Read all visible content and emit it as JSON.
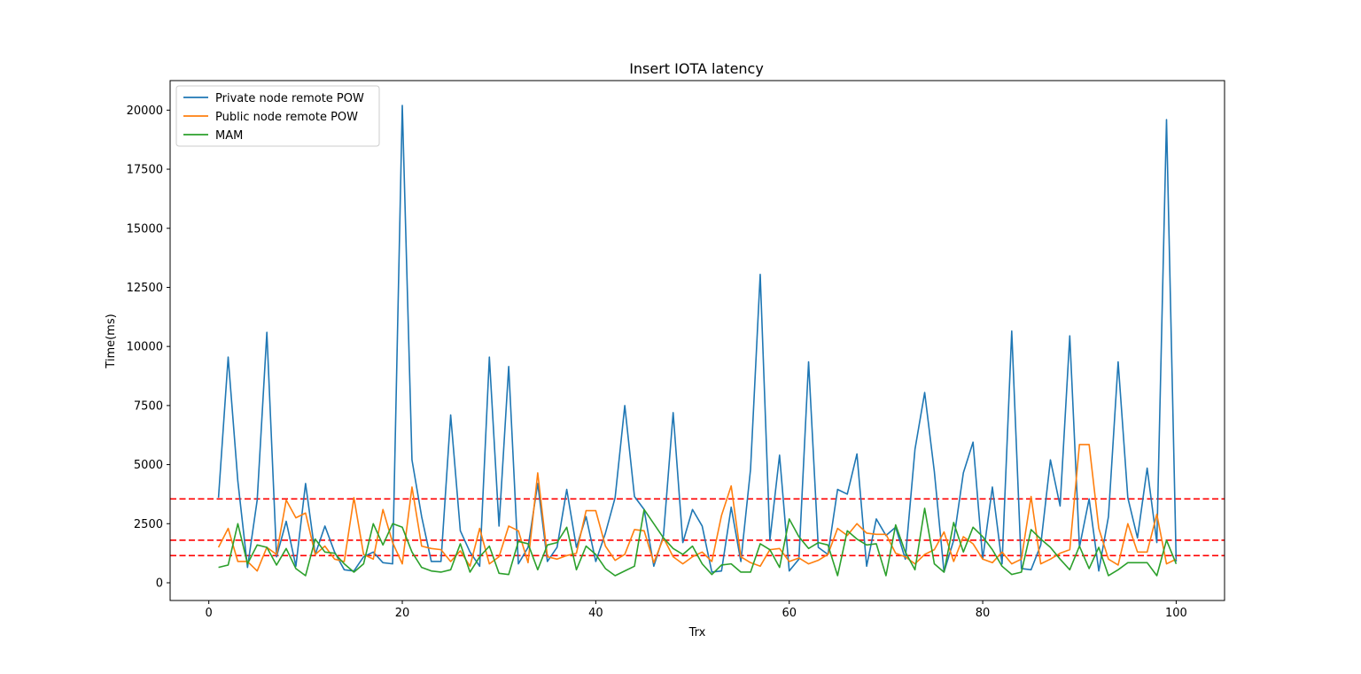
{
  "chart_data": {
    "type": "line",
    "title": "Insert IOTA latency",
    "xlabel": "Trx",
    "ylabel": "Time(ms)",
    "xlim": [
      -4,
      105
    ],
    "ylim": [
      -750,
      21250
    ],
    "xticks": [
      0,
      20,
      40,
      60,
      80,
      100
    ],
    "yticks": [
      0,
      2500,
      5000,
      7500,
      10000,
      12500,
      15000,
      17500,
      20000
    ],
    "grid": false,
    "legend_position": "top-left",
    "x": [
      1,
      2,
      3,
      4,
      5,
      6,
      7,
      8,
      9,
      10,
      11,
      12,
      13,
      14,
      15,
      16,
      17,
      18,
      19,
      20,
      21,
      22,
      23,
      24,
      25,
      26,
      27,
      28,
      29,
      30,
      31,
      32,
      33,
      34,
      35,
      36,
      37,
      38,
      39,
      40,
      41,
      42,
      43,
      44,
      45,
      46,
      47,
      48,
      49,
      50,
      51,
      52,
      53,
      54,
      55,
      56,
      57,
      58,
      59,
      60,
      61,
      62,
      63,
      64,
      65,
      66,
      67,
      68,
      69,
      70,
      71,
      72,
      73,
      74,
      75,
      76,
      77,
      78,
      79,
      80,
      81,
      82,
      83,
      84,
      85,
      86,
      87,
      88,
      89,
      90,
      91,
      92,
      93,
      94,
      95,
      96,
      97,
      98,
      99,
      100
    ],
    "series": [
      {
        "name": "Private node remote POW",
        "color": "#1f77b4",
        "values": [
          3600,
          9550,
          4300,
          650,
          3500,
          10600,
          1100,
          2600,
          700,
          4200,
          1200,
          2400,
          1300,
          550,
          500,
          1100,
          1300,
          850,
          800,
          20200,
          5200,
          2800,
          900,
          900,
          7100,
          2200,
          1300,
          700,
          9550,
          2400,
          9150,
          800,
          1500,
          4200,
          900,
          1500,
          3950,
          1500,
          2800,
          900,
          2100,
          3600,
          7500,
          3650,
          3100,
          700,
          2000,
          7200,
          1700,
          3100,
          2400,
          450,
          500,
          3200,
          900,
          4800,
          13050,
          1800,
          5400,
          500,
          1000,
          9350,
          1500,
          1200,
          3950,
          3750,
          5450,
          700,
          2700,
          2000,
          2350,
          1000,
          5650,
          8050,
          4700,
          450,
          1800,
          4650,
          5950,
          1000,
          4050,
          800,
          10650,
          600,
          550,
          1600,
          5200,
          3250,
          10450,
          1500,
          3550,
          500,
          2800,
          9350,
          3600,
          1900,
          4850,
          1700,
          19600,
          900
        ]
      },
      {
        "name": "Public node remote POW",
        "color": "#ff7f0e",
        "values": [
          1500,
          2300,
          900,
          900,
          500,
          1500,
          1200,
          3500,
          2750,
          2950,
          1200,
          1550,
          1000,
          900,
          3600,
          1200,
          1000,
          3100,
          1700,
          800,
          4050,
          1550,
          1450,
          1400,
          900,
          1350,
          700,
          2300,
          800,
          1100,
          2400,
          2200,
          850,
          4650,
          1100,
          1000,
          1150,
          1250,
          3050,
          3050,
          1550,
          950,
          1200,
          2250,
          2200,
          850,
          1900,
          1100,
          800,
          1100,
          1300,
          900,
          2850,
          4100,
          1100,
          850,
          700,
          1400,
          1450,
          900,
          1050,
          800,
          950,
          1200,
          2300,
          2000,
          2500,
          2100,
          2050,
          2050,
          1250,
          1100,
          800,
          1200,
          1400,
          2150,
          900,
          1950,
          1650,
          1000,
          850,
          1300,
          800,
          1000,
          3650,
          800,
          1000,
          1250,
          1400,
          5850,
          5850,
          2300,
          1000,
          750,
          2500,
          1300,
          1300,
          2900,
          800,
          1000
        ]
      },
      {
        "name": "MAM",
        "color": "#2ca02c",
        "values": [
          650,
          750,
          2500,
          800,
          1600,
          1500,
          750,
          1450,
          600,
          300,
          1850,
          1300,
          1250,
          800,
          450,
          800,
          2500,
          1600,
          2500,
          2350,
          1300,
          650,
          500,
          450,
          550,
          1650,
          450,
          1100,
          1550,
          400,
          350,
          1750,
          1650,
          550,
          1600,
          1700,
          2350,
          550,
          1550,
          1200,
          600,
          300,
          500,
          700,
          3100,
          2500,
          1900,
          1450,
          1200,
          1550,
          800,
          350,
          750,
          800,
          450,
          450,
          1650,
          1400,
          650,
          2700,
          1950,
          1450,
          1700,
          1600,
          300,
          2200,
          1850,
          1600,
          1650,
          300,
          2450,
          1300,
          550,
          3150,
          800,
          450,
          2550,
          1300,
          2350,
          1950,
          1400,
          700,
          350,
          450,
          2250,
          1850,
          1500,
          1000,
          550,
          1550,
          600,
          1500,
          300,
          550,
          850,
          850,
          850,
          300,
          1800,
          800
        ]
      }
    ],
    "reference_lines": [
      {
        "y": 3550,
        "color": "#ff0000",
        "style": "dashed"
      },
      {
        "y": 1800,
        "color": "#ff0000",
        "style": "dashed"
      },
      {
        "y": 1150,
        "color": "#ff0000",
        "style": "dashed"
      }
    ]
  }
}
